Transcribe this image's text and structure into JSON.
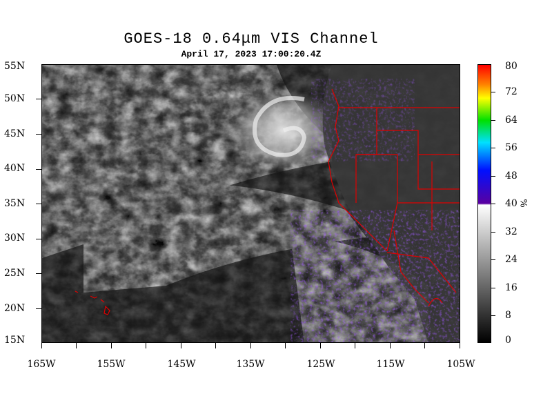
{
  "title": "GOES-18  0.64μm VIS Channel",
  "subtitle": "April 17,  2023 17:00:20.4Z",
  "lat_labels": [
    "55N",
    "50N",
    "45N",
    "40N",
    "35N",
    "30N",
    "25N",
    "20N",
    "15N"
  ],
  "lon_labels": [
    "165W",
    "155W",
    "145W",
    "135W",
    "125W",
    "115W",
    "105W"
  ],
  "colorbar": {
    "labels": [
      "80",
      "72",
      "64",
      "56",
      "48",
      "40",
      "32",
      "24",
      "16",
      "8",
      "0"
    ],
    "unit": "%",
    "colors": {
      "low": "#000000",
      "mid": "#ffffff",
      "purple": "#5a00a0",
      "blue": "#0010ff",
      "cyan": "#00e0ff",
      "green": "#00e000",
      "yellow": "#ffff00",
      "orange": "#ff8000",
      "red": "#ff0000"
    }
  },
  "colors": {
    "border": "#e00000",
    "ocean_dark": "#151515",
    "cloud": "#d8d8d8"
  }
}
